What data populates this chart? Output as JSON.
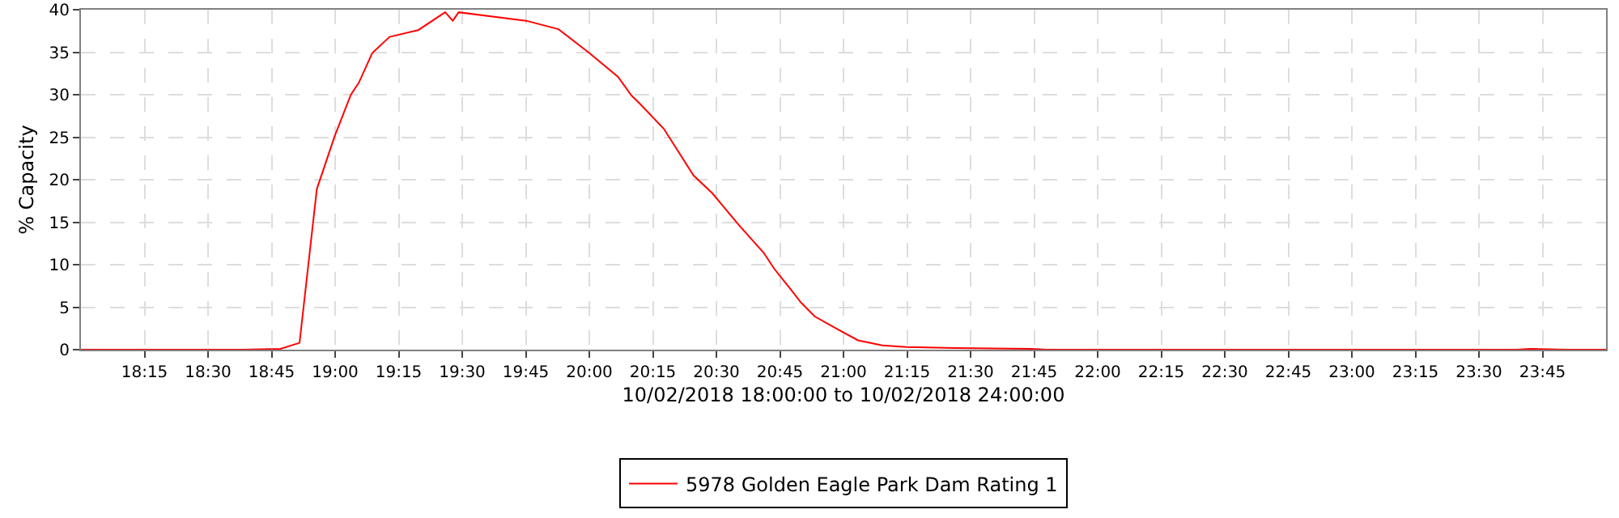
{
  "chart_data": {
    "type": "line",
    "xlabel": "10/02/2018 18:00:00 to 10/02/2018 24:00:00",
    "ylabel": "% Capacity",
    "xlim": [
      18,
      24
    ],
    "ylim": [
      0,
      40
    ],
    "yticks": [
      0,
      5,
      10,
      15,
      20,
      25,
      30,
      35,
      40
    ],
    "xticks": [
      {
        "value": 18.25,
        "label": "18:15"
      },
      {
        "value": 18.5,
        "label": "18:30"
      },
      {
        "value": 18.75,
        "label": "18:45"
      },
      {
        "value": 19,
        "label": "19:00"
      },
      {
        "value": 19.25,
        "label": "19:15"
      },
      {
        "value": 19.5,
        "label": "19:30"
      },
      {
        "value": 19.75,
        "label": "19:45"
      },
      {
        "value": 20,
        "label": "20:00"
      },
      {
        "value": 20.25,
        "label": "20:15"
      },
      {
        "value": 20.5,
        "label": "20:30"
      },
      {
        "value": 20.75,
        "label": "20:45"
      },
      {
        "value": 21,
        "label": "21:00"
      },
      {
        "value": 21.25,
        "label": "21:15"
      },
      {
        "value": 21.5,
        "label": "21:30"
      },
      {
        "value": 21.75,
        "label": "21:45"
      },
      {
        "value": 22,
        "label": "22:00"
      },
      {
        "value": 22.25,
        "label": "22:15"
      },
      {
        "value": 22.5,
        "label": "22:30"
      },
      {
        "value": 22.75,
        "label": "22:45"
      },
      {
        "value": 23,
        "label": "23:00"
      },
      {
        "value": 23.25,
        "label": "23:15"
      },
      {
        "value": 23.5,
        "label": "23:30"
      },
      {
        "value": 23.75,
        "label": "23:45"
      }
    ],
    "grid": true,
    "legend": "bottom",
    "marker": "none",
    "line_style": "solid",
    "series": [
      {
        "name": "5978 Golden Eagle Park Dam Rating 1",
        "color": "#ff0000",
        "x": [
          18,
          18.64,
          18.785,
          18.86,
          18.928,
          18.998,
          19.062,
          19.093,
          19.146,
          19.214,
          19.327,
          19.433,
          19.463,
          19.486,
          19.752,
          19.879,
          19.996,
          20.113,
          20.166,
          20.197,
          20.293,
          20.41,
          20.484,
          20.59,
          20.686,
          20.728,
          20.792,
          20.834,
          20.887,
          20.983,
          21.057,
          21.153,
          21.248,
          21.44,
          21.737,
          21.8,
          23.65,
          23.7,
          23.84,
          24
        ],
        "values": [
          0,
          0,
          0.1,
          0.8,
          18.9,
          25.1,
          30.0,
          31.4,
          34.9,
          36.8,
          37.6,
          39.7,
          38.7,
          39.7,
          38.7,
          37.7,
          35.0,
          32.1,
          29.9,
          29.0,
          26.0,
          20.5,
          18.4,
          14.6,
          11.4,
          9.5,
          7.1,
          5.5,
          3.9,
          2.3,
          1.1,
          0.5,
          0.3,
          0.2,
          0.1,
          0,
          0,
          0.1,
          0,
          0
        ]
      }
    ]
  }
}
